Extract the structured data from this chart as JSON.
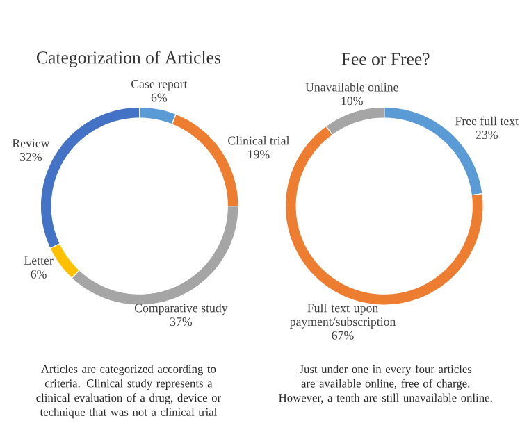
{
  "chart_data": [
    {
      "type": "donut",
      "title": "Categorization of Articles",
      "categories": [
        "Case report",
        "Clinical trial",
        "Comparative study",
        "Letter",
        "Review"
      ],
      "values": [
        6,
        19,
        37,
        6,
        32
      ],
      "value_labels": [
        "6%",
        "19%",
        "37%",
        "6%",
        "32%"
      ],
      "colors": [
        "#5b9bd5",
        "#ed7d31",
        "#a5a5a5",
        "#ffc000",
        "#4472c4"
      ],
      "annotations": [
        "Articles are categorized according to criteria. Clinical study represents a clinical evaluation of a drug, device or technique that was not a clinical trial"
      ]
    },
    {
      "type": "donut",
      "title": "Fee or Free?",
      "categories": [
        "Free full text",
        "Full text upon payment/subscription",
        "Unavailable online"
      ],
      "values": [
        23,
        67,
        10
      ],
      "value_labels": [
        "23%",
        "67%",
        "10%"
      ],
      "colors": [
        "#5b9bd5",
        "#ed7d31",
        "#a5a5a5"
      ],
      "annotations": [
        "Just under one in every four articles are available online, free of charge. However, a tenth are still unavailable online."
      ]
    }
  ]
}
